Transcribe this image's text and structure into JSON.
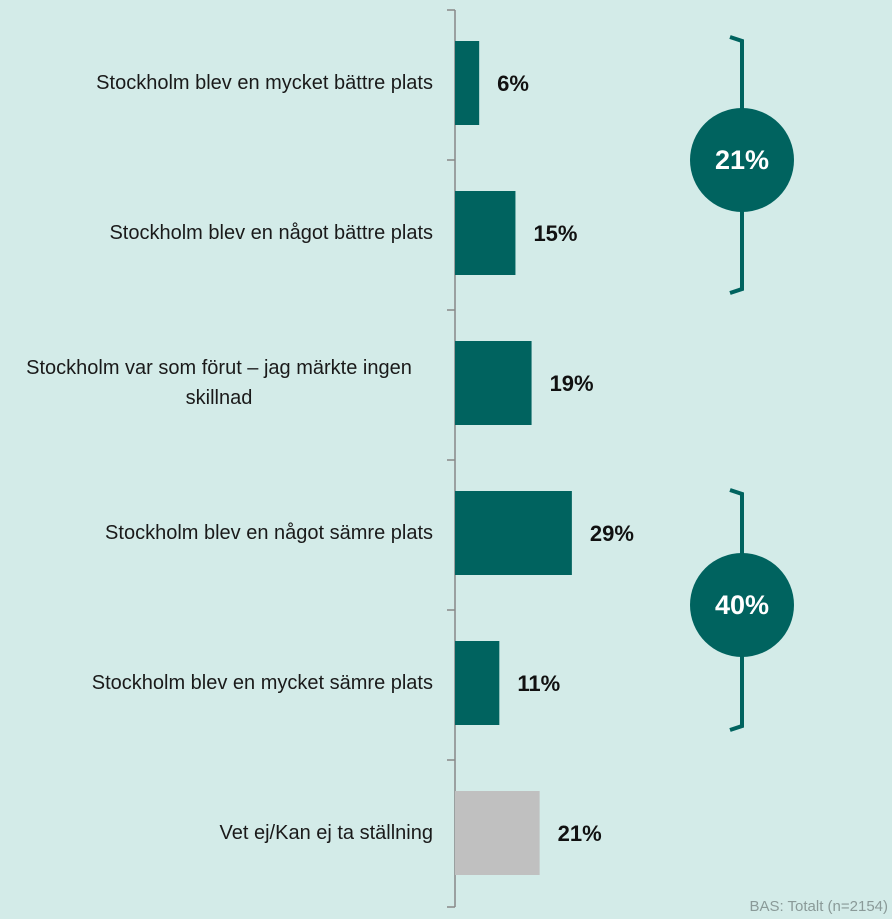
{
  "chart_data": {
    "type": "bar",
    "orientation": "horizontal",
    "categories": [
      "Stockholm blev en mycket bättre plats",
      "Stockholm blev en något bättre plats",
      "Stockholm var som förut – jag märkte ingen skillnad",
      "Stockholm blev en något sämre plats",
      "Stockholm blev en mycket sämre plats",
      "Vet ej/Kan ej ta ställning"
    ],
    "values": [
      6,
      15,
      19,
      29,
      11,
      21
    ],
    "value_labels": [
      "6%",
      "15%",
      "19%",
      "29%",
      "11%",
      "21%"
    ],
    "colors": [
      "#00635f",
      "#00635f",
      "#00635f",
      "#00635f",
      "#00635f",
      "#c0c0c0"
    ],
    "xlim": [
      0,
      100
    ],
    "annotations": [
      {
        "value": 21,
        "label": "21%"
      },
      {
        "value": 40,
        "label": "40%"
      }
    ],
    "footnote": "BAS: Totalt (n=2154)"
  }
}
